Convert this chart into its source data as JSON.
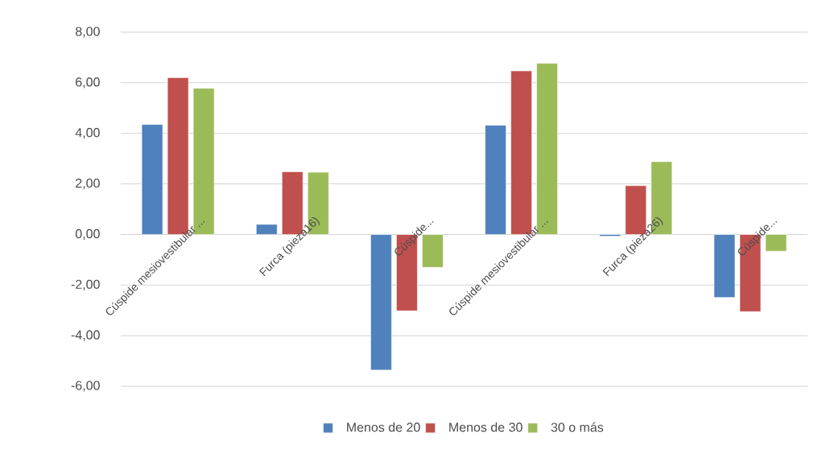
{
  "chart_data": {
    "type": "bar",
    "categories": [
      "Cúspide mesiovestibular ...",
      "Furca (pieza16)",
      "Cúspide...",
      "Cúspide mesiovestibular ...",
      "Furca (pieza26)",
      "Cúspide..."
    ],
    "series": [
      {
        "name": "Menos de 20",
        "color": "#4f81bd",
        "values": [
          4.35,
          0.4,
          -5.36,
          4.32,
          -0.07,
          -2.49
        ]
      },
      {
        "name": "Menos de 30",
        "color": "#c0504d",
        "values": [
          6.2,
          2.48,
          -3.02,
          6.47,
          1.93,
          -3.05
        ]
      },
      {
        "name": "30 o más",
        "color": "#9bbb59",
        "values": [
          5.78,
          2.46,
          -1.3,
          6.77,
          2.88,
          -0.66
        ]
      }
    ],
    "ylim": [
      -6,
      8
    ],
    "yticks": [
      {
        "value": -6,
        "label": "-6,00"
      },
      {
        "value": -4,
        "label": "-4,00"
      },
      {
        "value": -2,
        "label": "-2,00"
      },
      {
        "value": 0,
        "label": "0,00"
      },
      {
        "value": 2,
        "label": "2,00"
      },
      {
        "value": 4,
        "label": "4,00"
      },
      {
        "value": 6,
        "label": "6,00"
      },
      {
        "value": 8,
        "label": "8,00"
      }
    ],
    "grid": "y",
    "legend": "bottom"
  }
}
